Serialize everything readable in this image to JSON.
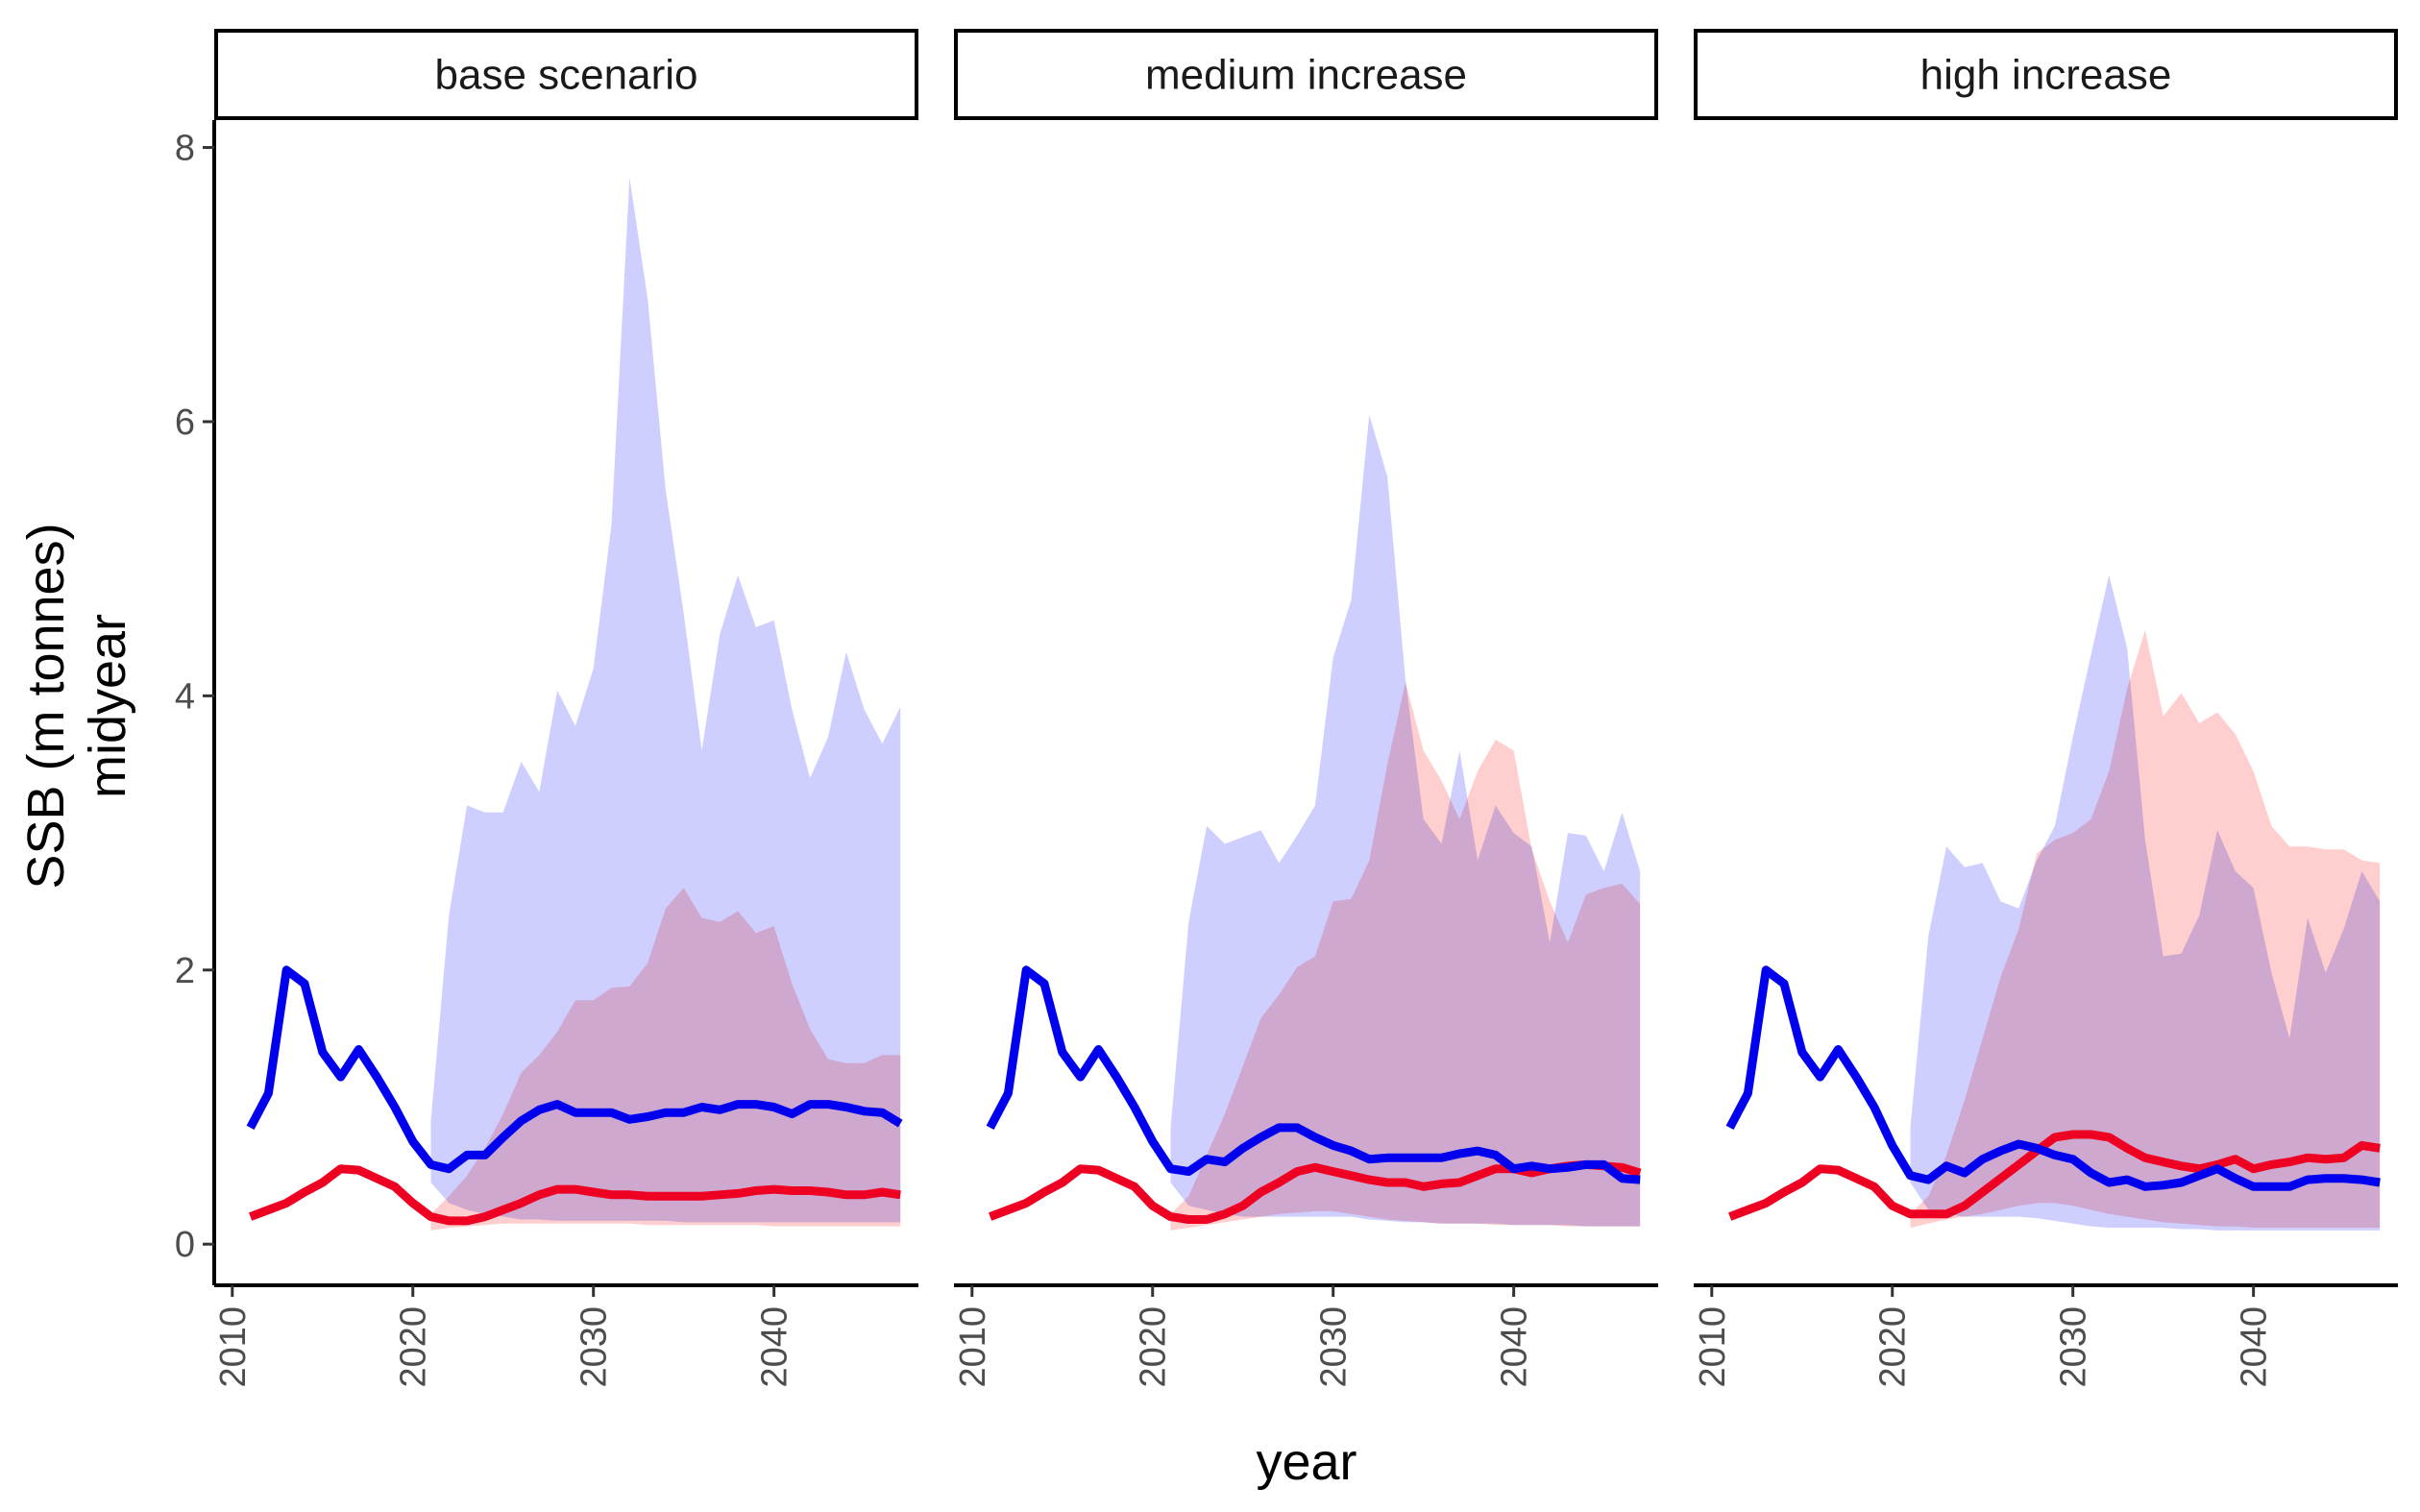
{
  "chart_data": {
    "type": "area",
    "xlabel": "year",
    "ylabel_lines": [
      "SSB (m tonnes)",
      "midyear"
    ],
    "xlim": [
      2009,
      2048
    ],
    "ylim": [
      -0.3,
      8.2
    ],
    "x_ticks": [
      2010,
      2020,
      2030,
      2040
    ],
    "y_ticks": [
      0,
      2,
      4,
      6,
      8
    ],
    "grid": false,
    "legend": "none",
    "colors": {
      "blue_line": "#0000ee",
      "red_line": "#ee0022",
      "blue_band": "#ccccff",
      "red_band": "#ffcccc"
    },
    "panels": [
      {
        "title": "base scenario",
        "years": [
          2011,
          2012,
          2013,
          2014,
          2015,
          2016,
          2017,
          2018,
          2019,
          2020,
          2021,
          2022,
          2023,
          2024,
          2025,
          2026,
          2027,
          2028,
          2029,
          2030,
          2031,
          2032,
          2033,
          2034,
          2035,
          2036,
          2037,
          2038,
          2039,
          2040,
          2041,
          2042,
          2043,
          2044,
          2045,
          2046,
          2047
        ],
        "blue_line": [
          0.85,
          1.1,
          2.0,
          1.9,
          1.4,
          1.22,
          1.42,
          1.22,
          1.0,
          0.75,
          0.58,
          0.55,
          0.65,
          0.65,
          0.78,
          0.9,
          0.98,
          1.02,
          0.96,
          0.96,
          0.96,
          0.91,
          0.93,
          0.96,
          0.96,
          1.0,
          0.98,
          1.02,
          1.02,
          1.0,
          0.95,
          1.02,
          1.02,
          1.0,
          0.97,
          0.96,
          0.88
        ],
        "red_line": [
          0.2,
          0.25,
          0.3,
          0.38,
          0.45,
          0.55,
          0.54,
          0.48,
          0.42,
          0.3,
          0.2,
          0.17,
          0.17,
          0.2,
          0.25,
          0.3,
          0.36,
          0.4,
          0.4,
          0.38,
          0.36,
          0.36,
          0.35,
          0.35,
          0.35,
          0.35,
          0.36,
          0.37,
          0.39,
          0.4,
          0.39,
          0.39,
          0.38,
          0.36,
          0.36,
          0.38,
          0.36
        ],
        "blue_band": {
          "years": [
            2021,
            2022,
            2023,
            2024,
            2025,
            2026,
            2027,
            2028,
            2029,
            2030,
            2031,
            2032,
            2033,
            2034,
            2035,
            2036,
            2037,
            2038,
            2039,
            2040,
            2041,
            2042,
            2043,
            2044,
            2045,
            2046,
            2047
          ],
          "upper": [
            0.9,
            2.4,
            3.2,
            3.15,
            3.15,
            3.52,
            3.3,
            4.04,
            3.78,
            4.2,
            5.25,
            7.78,
            6.9,
            5.5,
            4.6,
            3.6,
            4.45,
            4.88,
            4.5,
            4.55,
            3.9,
            3.4,
            3.7,
            4.32,
            3.9,
            3.65,
            3.92
          ],
          "lower": [
            0.45,
            0.3,
            0.25,
            0.22,
            0.2,
            0.18,
            0.18,
            0.17,
            0.17,
            0.17,
            0.17,
            0.17,
            0.17,
            0.17,
            0.16,
            0.16,
            0.16,
            0.16,
            0.16,
            0.16,
            0.16,
            0.16,
            0.16,
            0.16,
            0.16,
            0.16,
            0.16
          ]
        },
        "red_band": {
          "years": [
            2021,
            2022,
            2023,
            2024,
            2025,
            2026,
            2027,
            2028,
            2029,
            2030,
            2031,
            2032,
            2033,
            2034,
            2035,
            2036,
            2037,
            2038,
            2039,
            2040,
            2041,
            2042,
            2043,
            2044,
            2045,
            2046,
            2047
          ],
          "upper": [
            0.22,
            0.35,
            0.5,
            0.7,
            0.95,
            1.25,
            1.38,
            1.55,
            1.78,
            1.78,
            1.87,
            1.88,
            2.05,
            2.45,
            2.6,
            2.38,
            2.35,
            2.43,
            2.27,
            2.32,
            1.9,
            1.57,
            1.35,
            1.32,
            1.32,
            1.38,
            1.38
          ],
          "lower": [
            0.1,
            0.12,
            0.13,
            0.14,
            0.15,
            0.15,
            0.15,
            0.15,
            0.15,
            0.15,
            0.15,
            0.15,
            0.14,
            0.14,
            0.14,
            0.14,
            0.14,
            0.14,
            0.14,
            0.13,
            0.13,
            0.13,
            0.13,
            0.13,
            0.13,
            0.13,
            0.13
          ]
        }
      },
      {
        "title": "medium increase",
        "years": [
          2011,
          2012,
          2013,
          2014,
          2015,
          2016,
          2017,
          2018,
          2019,
          2020,
          2021,
          2022,
          2023,
          2024,
          2025,
          2026,
          2027,
          2028,
          2029,
          2030,
          2031,
          2032,
          2033,
          2034,
          2035,
          2036,
          2037,
          2038,
          2039,
          2040,
          2041,
          2042,
          2043,
          2044,
          2045,
          2046,
          2047
        ],
        "blue_line": [
          0.85,
          1.1,
          2.0,
          1.9,
          1.4,
          1.22,
          1.42,
          1.22,
          1.0,
          0.75,
          0.55,
          0.53,
          0.62,
          0.6,
          0.7,
          0.78,
          0.85,
          0.85,
          0.78,
          0.72,
          0.68,
          0.62,
          0.63,
          0.63,
          0.63,
          0.63,
          0.66,
          0.68,
          0.65,
          0.55,
          0.57,
          0.55,
          0.56,
          0.58,
          0.58,
          0.48,
          0.47
        ],
        "red_line": [
          0.2,
          0.25,
          0.3,
          0.38,
          0.45,
          0.55,
          0.54,
          0.48,
          0.42,
          0.28,
          0.2,
          0.18,
          0.18,
          0.22,
          0.28,
          0.38,
          0.45,
          0.53,
          0.56,
          0.53,
          0.5,
          0.47,
          0.45,
          0.45,
          0.42,
          0.44,
          0.45,
          0.5,
          0.55,
          0.55,
          0.52,
          0.55,
          0.57,
          0.58,
          0.57,
          0.56,
          0.52
        ],
        "blue_band": {
          "years": [
            2021,
            2022,
            2023,
            2024,
            2025,
            2026,
            2027,
            2028,
            2029,
            2030,
            2031,
            2032,
            2033,
            2034,
            2035,
            2036,
            2037,
            2038,
            2039,
            2040,
            2041,
            2042,
            2043,
            2044,
            2045,
            2046,
            2047
          ],
          "upper": [
            0.85,
            2.35,
            3.05,
            2.92,
            2.97,
            3.02,
            2.78,
            2.98,
            3.2,
            4.28,
            4.7,
            6.05,
            5.6,
            4.12,
            3.1,
            2.92,
            3.6,
            2.8,
            3.2,
            3.0,
            2.9,
            2.2,
            3.0,
            2.98,
            2.72,
            3.15,
            2.72
          ],
          "lower": [
            0.45,
            0.28,
            0.25,
            0.22,
            0.2,
            0.2,
            0.2,
            0.2,
            0.2,
            0.2,
            0.2,
            0.18,
            0.17,
            0.16,
            0.16,
            0.15,
            0.15,
            0.15,
            0.15,
            0.14,
            0.14,
            0.14,
            0.14,
            0.13,
            0.13,
            0.13,
            0.13
          ]
        },
        "red_band": {
          "years": [
            2021,
            2022,
            2023,
            2024,
            2025,
            2026,
            2027,
            2028,
            2029,
            2030,
            2031,
            2032,
            2033,
            2034,
            2035,
            2036,
            2037,
            2038,
            2039,
            2040,
            2041,
            2042,
            2043,
            2044,
            2045,
            2046,
            2047
          ],
          "upper": [
            0.22,
            0.35,
            0.65,
            0.95,
            1.3,
            1.65,
            1.82,
            2.02,
            2.1,
            2.5,
            2.52,
            2.8,
            3.5,
            4.1,
            3.6,
            3.38,
            3.1,
            3.45,
            3.68,
            3.6,
            2.88,
            2.5,
            2.2,
            2.55,
            2.6,
            2.63,
            2.48
          ],
          "lower": [
            0.1,
            0.12,
            0.14,
            0.16,
            0.18,
            0.2,
            0.22,
            0.23,
            0.24,
            0.24,
            0.22,
            0.2,
            0.18,
            0.17,
            0.16,
            0.15,
            0.15,
            0.15,
            0.14,
            0.14,
            0.14,
            0.14,
            0.13,
            0.13,
            0.13,
            0.13,
            0.13
          ]
        }
      },
      {
        "title": "high increase",
        "years": [
          2011,
          2012,
          2013,
          2014,
          2015,
          2016,
          2017,
          2018,
          2019,
          2020,
          2021,
          2022,
          2023,
          2024,
          2025,
          2026,
          2027,
          2028,
          2029,
          2030,
          2031,
          2032,
          2033,
          2034,
          2035,
          2036,
          2037,
          2038,
          2039,
          2040,
          2041,
          2042,
          2043,
          2044,
          2045,
          2046,
          2047
        ],
        "blue_line": [
          0.85,
          1.1,
          2.0,
          1.9,
          1.4,
          1.22,
          1.42,
          1.22,
          1.0,
          0.72,
          0.5,
          0.47,
          0.57,
          0.52,
          0.62,
          0.68,
          0.73,
          0.7,
          0.65,
          0.62,
          0.52,
          0.45,
          0.47,
          0.42,
          0.43,
          0.45,
          0.5,
          0.55,
          0.48,
          0.42,
          0.42,
          0.42,
          0.47,
          0.48,
          0.48,
          0.47,
          0.45
        ],
        "red_line": [
          0.2,
          0.25,
          0.3,
          0.38,
          0.45,
          0.55,
          0.54,
          0.48,
          0.42,
          0.28,
          0.22,
          0.22,
          0.22,
          0.28,
          0.38,
          0.48,
          0.58,
          0.68,
          0.78,
          0.8,
          0.8,
          0.78,
          0.7,
          0.63,
          0.6,
          0.57,
          0.55,
          0.58,
          0.62,
          0.55,
          0.58,
          0.6,
          0.63,
          0.62,
          0.63,
          0.72,
          0.7
        ],
        "blue_band": {
          "years": [
            2021,
            2022,
            2023,
            2024,
            2025,
            2026,
            2027,
            2028,
            2029,
            2030,
            2031,
            2032,
            2033,
            2034,
            2035,
            2036,
            2037,
            2038,
            2039,
            2040,
            2041,
            2042,
            2043,
            2044,
            2045,
            2046,
            2047
          ],
          "upper": [
            0.85,
            2.25,
            2.9,
            2.75,
            2.78,
            2.5,
            2.45,
            2.8,
            3.05,
            3.7,
            4.3,
            4.88,
            4.35,
            2.95,
            2.1,
            2.12,
            2.4,
            3.02,
            2.72,
            2.6,
            1.98,
            1.5,
            2.38,
            1.98,
            2.3,
            2.72,
            2.5
          ],
          "lower": [
            0.45,
            0.25,
            0.22,
            0.2,
            0.2,
            0.2,
            0.2,
            0.19,
            0.17,
            0.15,
            0.13,
            0.12,
            0.12,
            0.12,
            0.12,
            0.11,
            0.11,
            0.1,
            0.1,
            0.1,
            0.1,
            0.1,
            0.1,
            0.1,
            0.1,
            0.1,
            0.1
          ]
        },
        "red_band": {
          "years": [
            2021,
            2022,
            2023,
            2024,
            2025,
            2026,
            2027,
            2028,
            2029,
            2030,
            2031,
            2032,
            2033,
            2034,
            2035,
            2036,
            2037,
            2038,
            2039,
            2040,
            2041,
            2042,
            2043,
            2044,
            2045,
            2046,
            2047
          ],
          "upper": [
            0.22,
            0.35,
            0.65,
            1.05,
            1.5,
            1.95,
            2.3,
            2.85,
            2.95,
            3.0,
            3.1,
            3.45,
            4.05,
            4.48,
            3.85,
            4.02,
            3.8,
            3.88,
            3.72,
            3.45,
            3.05,
            2.9,
            2.9,
            2.88,
            2.88,
            2.8,
            2.78
          ],
          "lower": [
            0.12,
            0.15,
            0.18,
            0.2,
            0.22,
            0.25,
            0.28,
            0.3,
            0.3,
            0.28,
            0.25,
            0.22,
            0.2,
            0.18,
            0.16,
            0.15,
            0.14,
            0.13,
            0.13,
            0.12,
            0.12,
            0.12,
            0.12,
            0.12,
            0.12,
            0.12,
            0.12
          ]
        }
      }
    ]
  }
}
